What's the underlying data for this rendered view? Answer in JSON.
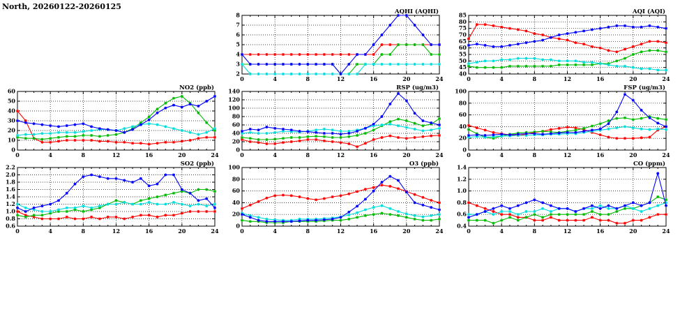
{
  "page_title": "North, 20260122-20260125",
  "colors": {
    "red": "#ff0000",
    "green": "#00bb00",
    "cyan": "#00dddd",
    "blue": "#0000ff"
  },
  "hours": [
    0,
    1,
    2,
    3,
    4,
    5,
    6,
    7,
    8,
    9,
    10,
    11,
    12,
    13,
    14,
    15,
    16,
    17,
    18,
    19,
    20,
    21,
    22,
    23,
    24
  ],
  "xticks": [
    0,
    4,
    8,
    12,
    16,
    20,
    24
  ],
  "chart_data": [
    {
      "id": "aqhi",
      "type": "line",
      "title": "AQHI (AQHI)",
      "row": 0,
      "col": 1,
      "xlim": [
        0,
        24
      ],
      "ylim": [
        2,
        8
      ],
      "ytick_step": 1,
      "series": [
        {
          "name": "red",
          "values": [
            4,
            4,
            4,
            4,
            4,
            4,
            4,
            4,
            4,
            4,
            4,
            4,
            4,
            4,
            4,
            4,
            4,
            5,
            5,
            5,
            5,
            5,
            5,
            5,
            5
          ]
        },
        {
          "name": "green",
          "values": [
            3,
            3,
            3,
            3,
            3,
            3,
            3,
            3,
            3,
            3,
            3,
            3,
            2,
            2,
            3,
            3,
            3,
            4,
            4,
            5,
            5,
            5,
            5,
            4,
            4
          ]
        },
        {
          "name": "cyan",
          "values": [
            3,
            2,
            2,
            2,
            2,
            2,
            2,
            2,
            2,
            2,
            2,
            2,
            2,
            2,
            2,
            3,
            3,
            3,
            3,
            3,
            3,
            3,
            3,
            3,
            3
          ]
        },
        {
          "name": "blue",
          "values": [
            4,
            3,
            3,
            3,
            3,
            3,
            3,
            3,
            3,
            3,
            3,
            3,
            2,
            3,
            4,
            4,
            5,
            6,
            7,
            8,
            8,
            7,
            6,
            5,
            5
          ]
        }
      ]
    },
    {
      "id": "aqi",
      "type": "line",
      "title": "AQI (AQI)",
      "row": 0,
      "col": 2,
      "xlim": [
        0,
        24
      ],
      "ylim": [
        40,
        85
      ],
      "ytick_step": 5,
      "series": [
        {
          "name": "red",
          "values": [
            67,
            78,
            78,
            77,
            76,
            75,
            74,
            73,
            71,
            70,
            68,
            67,
            66,
            64,
            63,
            61,
            60,
            58,
            57,
            59,
            61,
            63,
            65,
            65,
            64
          ]
        },
        {
          "name": "green",
          "values": [
            46,
            45,
            45,
            45,
            45,
            46,
            46,
            46,
            46,
            46,
            46,
            47,
            47,
            47,
            47,
            47,
            48,
            48,
            50,
            52,
            55,
            57,
            58,
            58,
            57
          ]
        },
        {
          "name": "cyan",
          "values": [
            48,
            49,
            50,
            50,
            51,
            51,
            52,
            52,
            52,
            51,
            51,
            50,
            50,
            50,
            49,
            49,
            48,
            47,
            46,
            46,
            45,
            44,
            44,
            43,
            43
          ]
        },
        {
          "name": "blue",
          "values": [
            62,
            63,
            62,
            61,
            61,
            62,
            63,
            64,
            65,
            66,
            68,
            70,
            71,
            72,
            73,
            74,
            75,
            76,
            77,
            77,
            76,
            76,
            77,
            76,
            75
          ]
        }
      ]
    },
    {
      "id": "no2",
      "type": "line",
      "title": "NO2 (ppb)",
      "row": 1,
      "col": 0,
      "xlim": [
        0,
        24
      ],
      "ylim": [
        0,
        60
      ],
      "ytick_step": 10,
      "series": [
        {
          "name": "red",
          "values": [
            40,
            30,
            12,
            8,
            8,
            9,
            10,
            10,
            10,
            10,
            9,
            9,
            8,
            8,
            7,
            7,
            6,
            7,
            8,
            8,
            9,
            10,
            12,
            13,
            13
          ]
        },
        {
          "name": "green",
          "values": [
            13,
            12,
            12,
            11,
            12,
            13,
            14,
            14,
            15,
            15,
            14,
            15,
            16,
            18,
            22,
            28,
            34,
            42,
            48,
            53,
            55,
            48,
            38,
            28,
            20
          ]
        },
        {
          "name": "cyan",
          "values": [
            15,
            16,
            16,
            17,
            17,
            18,
            18,
            18,
            19,
            20,
            21,
            21,
            20,
            22,
            24,
            26,
            27,
            26,
            24,
            22,
            20,
            18,
            16,
            18,
            22
          ]
        },
        {
          "name": "blue",
          "values": [
            30,
            28,
            27,
            26,
            25,
            24,
            25,
            26,
            27,
            24,
            22,
            21,
            20,
            18,
            21,
            26,
            31,
            38,
            43,
            46,
            44,
            47,
            45,
            50,
            55
          ]
        }
      ]
    },
    {
      "id": "rsp",
      "type": "line",
      "title": "RSP (ug/m3)",
      "row": 1,
      "col": 1,
      "xlim": [
        0,
        24
      ],
      "ylim": [
        0,
        140
      ],
      "ytick_step": 20,
      "series": [
        {
          "name": "red",
          "values": [
            25,
            20,
            18,
            15,
            15,
            18,
            20,
            22,
            25,
            25,
            22,
            20,
            18,
            15,
            8,
            16,
            25,
            30,
            34,
            30,
            28,
            30,
            32,
            34,
            35
          ]
        },
        {
          "name": "green",
          "values": [
            30,
            28,
            25,
            25,
            26,
            28,
            30,
            30,
            32,
            33,
            32,
            30,
            30,
            32,
            35,
            40,
            48,
            58,
            68,
            74,
            70,
            64,
            58,
            62,
            75
          ]
        },
        {
          "name": "cyan",
          "values": [
            40,
            42,
            40,
            40,
            42,
            45,
            44,
            43,
            45,
            48,
            50,
            48,
            45,
            45,
            48,
            52,
            58,
            60,
            62,
            58,
            54,
            50,
            46,
            48,
            52
          ]
        },
        {
          "name": "blue",
          "values": [
            45,
            50,
            48,
            55,
            52,
            50,
            48,
            45,
            44,
            42,
            40,
            40,
            38,
            40,
            45,
            52,
            62,
            80,
            110,
            135,
            118,
            88,
            70,
            65,
            60
          ]
        }
      ]
    },
    {
      "id": "fsp",
      "type": "line",
      "title": "FSP (ug/m3)",
      "row": 1,
      "col": 2,
      "xlim": [
        0,
        24
      ],
      "ylim": [
        0,
        100
      ],
      "ytick_step": 20,
      "series": [
        {
          "name": "red",
          "values": [
            42,
            38,
            34,
            30,
            28,
            26,
            25,
            27,
            30,
            32,
            35,
            37,
            39,
            38,
            35,
            30,
            26,
            22,
            20,
            20,
            20,
            21,
            22,
            34,
            40
          ]
        },
        {
          "name": "green",
          "values": [
            35,
            28,
            22,
            20,
            24,
            27,
            29,
            30,
            31,
            32,
            31,
            30,
            32,
            34,
            37,
            41,
            45,
            50,
            54,
            55,
            52,
            54,
            57,
            54,
            52
          ]
        },
        {
          "name": "cyan",
          "values": [
            22,
            23,
            22,
            23,
            24,
            24,
            25,
            25,
            26,
            26,
            27,
            27,
            28,
            28,
            30,
            32,
            34,
            36,
            38,
            40,
            38,
            36,
            35,
            36,
            35
          ]
        },
        {
          "name": "blue",
          "values": [
            25,
            26,
            25,
            26,
            27,
            26,
            27,
            28,
            28,
            27,
            28,
            29,
            30,
            30,
            32,
            34,
            36,
            45,
            65,
            95,
            85,
            68,
            55,
            46,
            40
          ]
        }
      ]
    },
    {
      "id": "so2",
      "type": "line",
      "title": "SO2 (ppb)",
      "row": 2,
      "col": 0,
      "xlim": [
        0,
        24
      ],
      "ylim": [
        0.6,
        2.2
      ],
      "ytick_step": 0.2,
      "series": [
        {
          "name": "red",
          "values": [
            1.0,
            0.9,
            0.85,
            0.8,
            0.8,
            0.8,
            0.85,
            0.8,
            0.8,
            0.85,
            0.8,
            0.85,
            0.85,
            0.8,
            0.85,
            0.9,
            0.9,
            0.85,
            0.9,
            0.9,
            0.95,
            1.0,
            1.0,
            1.0,
            1.0
          ]
        },
        {
          "name": "green",
          "values": [
            0.9,
            0.85,
            0.9,
            0.9,
            0.95,
            1.0,
            1.0,
            1.05,
            1.0,
            1.05,
            1.1,
            1.2,
            1.3,
            1.25,
            1.2,
            1.3,
            1.35,
            1.4,
            1.45,
            1.5,
            1.55,
            1.5,
            1.6,
            1.6,
            1.55
          ]
        },
        {
          "name": "cyan",
          "values": [
            1.2,
            1.1,
            1.05,
            1.0,
            1.0,
            1.05,
            1.1,
            1.1,
            1.15,
            1.1,
            1.15,
            1.2,
            1.2,
            1.25,
            1.2,
            1.2,
            1.25,
            1.2,
            1.2,
            1.25,
            1.2,
            1.15,
            1.2,
            1.15,
            1.2
          ]
        },
        {
          "name": "blue",
          "values": [
            1.1,
            1.0,
            1.1,
            1.15,
            1.2,
            1.3,
            1.5,
            1.75,
            1.95,
            2.0,
            1.95,
            1.9,
            1.9,
            1.85,
            1.8,
            1.9,
            1.7,
            1.75,
            2.0,
            2.0,
            1.6,
            1.5,
            1.3,
            1.35,
            1.1
          ]
        }
      ]
    },
    {
      "id": "o3",
      "type": "line",
      "title": "O3 (ppb)",
      "row": 2,
      "col": 1,
      "xlim": [
        0,
        24
      ],
      "ylim": [
        0,
        100
      ],
      "ytick_step": 20,
      "series": [
        {
          "name": "red",
          "values": [
            30,
            36,
            42,
            48,
            52,
            53,
            52,
            50,
            47,
            45,
            47,
            50,
            52,
            55,
            59,
            63,
            66,
            70,
            68,
            64,
            59,
            54,
            49,
            44,
            40
          ]
        },
        {
          "name": "green",
          "values": [
            10,
            8,
            8,
            6,
            6,
            6,
            8,
            8,
            8,
            8,
            9,
            10,
            10,
            12,
            15,
            18,
            20,
            22,
            20,
            18,
            15,
            12,
            10,
            10,
            12
          ]
        },
        {
          "name": "cyan",
          "values": [
            22,
            18,
            15,
            12,
            11,
            10,
            10,
            12,
            12,
            12,
            13,
            14,
            16,
            19,
            23,
            28,
            32,
            35,
            30,
            25,
            21,
            18,
            16,
            18,
            20
          ]
        },
        {
          "name": "blue",
          "values": [
            20,
            15,
            10,
            8,
            8,
            8,
            8,
            9,
            10,
            10,
            11,
            12,
            15,
            24,
            34,
            46,
            60,
            75,
            85,
            78,
            58,
            40,
            36,
            32,
            28
          ]
        }
      ]
    },
    {
      "id": "co",
      "type": "line",
      "title": "CO (ppm)",
      "row": 2,
      "col": 2,
      "xlim": [
        0,
        24
      ],
      "ylim": [
        0.4,
        1.4
      ],
      "ytick_step": 0.2,
      "series": [
        {
          "name": "red",
          "values": [
            0.8,
            0.75,
            0.7,
            0.65,
            0.6,
            0.6,
            0.55,
            0.55,
            0.5,
            0.5,
            0.55,
            0.5,
            0.5,
            0.5,
            0.5,
            0.55,
            0.5,
            0.5,
            0.45,
            0.45,
            0.5,
            0.5,
            0.55,
            0.6,
            0.6
          ]
        },
        {
          "name": "green",
          "values": [
            0.5,
            0.5,
            0.5,
            0.45,
            0.5,
            0.55,
            0.5,
            0.55,
            0.6,
            0.55,
            0.6,
            0.6,
            0.6,
            0.6,
            0.6,
            0.65,
            0.6,
            0.6,
            0.65,
            0.7,
            0.7,
            0.75,
            0.8,
            0.9,
            0.85
          ]
        },
        {
          "name": "cyan",
          "values": [
            0.6,
            0.6,
            0.65,
            0.6,
            0.65,
            0.65,
            0.6,
            0.65,
            0.65,
            0.7,
            0.65,
            0.7,
            0.7,
            0.65,
            0.7,
            0.7,
            0.75,
            0.7,
            0.7,
            0.75,
            0.7,
            0.65,
            0.7,
            0.75,
            0.8
          ]
        },
        {
          "name": "blue",
          "values": [
            0.55,
            0.6,
            0.65,
            0.7,
            0.75,
            0.7,
            0.75,
            0.8,
            0.85,
            0.8,
            0.75,
            0.7,
            0.7,
            0.65,
            0.7,
            0.75,
            0.7,
            0.75,
            0.7,
            0.75,
            0.8,
            0.75,
            0.8,
            1.3,
            0.75
          ]
        }
      ]
    }
  ]
}
